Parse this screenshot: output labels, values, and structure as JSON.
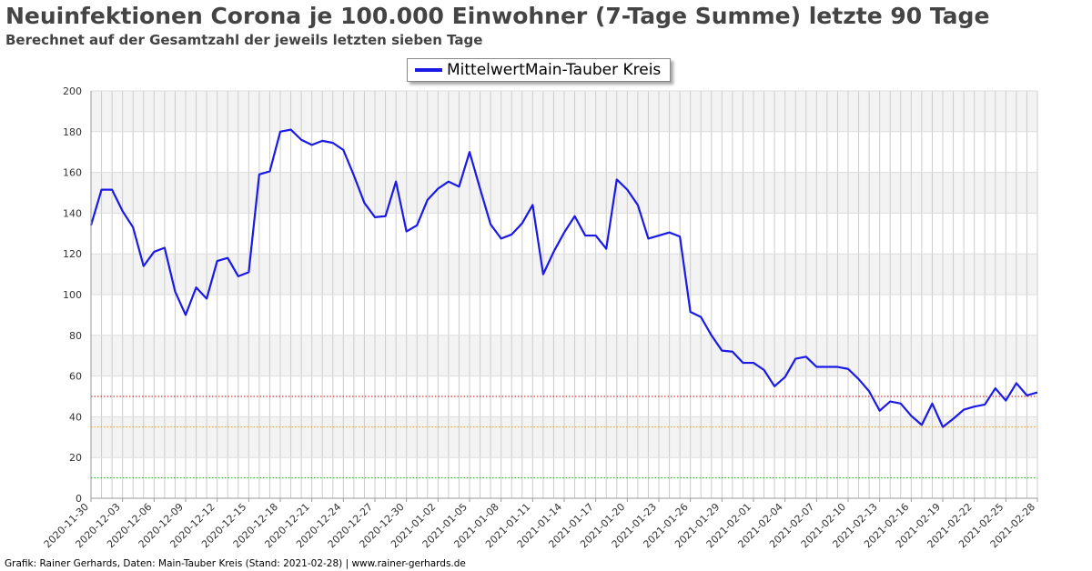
{
  "header": {
    "title": "Neuinfektionen Corona je 100.000 Einwohner (7-Tage Summe) letzte 90 Tage",
    "subtitle": "Berechnet auf der Gesamtzahl der jeweils letzten sieben Tage"
  },
  "footer": {
    "text": "Grafik: Rainer Gerhards, Daten: Main-Tauber Kreis (Stand: 2021-02-28) | www.rainer-gerhards.de"
  },
  "colors": {
    "series": "#1a1ae6",
    "line_50": "#cc0000",
    "line_35": "#ff9900",
    "line_10": "#00bb00",
    "band": "#f3f3f3",
    "grid": "#cccccc"
  },
  "chart_data": {
    "type": "line",
    "title": "Neuinfektionen Corona je 100.000 Einwohner (7-Tage Summe) letzte 90 Tage",
    "subtitle": "Berechnet auf der Gesamtzahl der jeweils letzten sieben Tage",
    "x_start": "2020-11-30",
    "x_end": "2021-02-28",
    "ylim": [
      0,
      200
    ],
    "yticks": [
      0,
      20,
      40,
      60,
      80,
      100,
      120,
      140,
      160,
      180,
      200
    ],
    "xtick_labels": [
      "2020-11-30",
      "2020-12-03",
      "2020-12-06",
      "2020-12-09",
      "2020-12-12",
      "2020-12-15",
      "2020-12-18",
      "2020-12-21",
      "2020-12-24",
      "2020-12-27",
      "2020-12-30",
      "2021-01-02",
      "2021-01-05",
      "2021-01-08",
      "2021-01-11",
      "2021-01-14",
      "2021-01-17",
      "2021-01-20",
      "2021-01-23",
      "2021-01-26",
      "2021-01-29",
      "2021-02-01",
      "2021-02-04",
      "2021-02-07",
      "2021-02-10",
      "2021-02-13",
      "2021-02-16",
      "2021-02-19",
      "2021-02-22",
      "2021-02-25",
      "2021-02-28"
    ],
    "grid": true,
    "legend_position": "top-center",
    "series": [
      {
        "name": "MittelwertMain-Tauber Kreis",
        "color": "#1a1ae6",
        "values": [
          134,
          151.5,
          151.5,
          141,
          133,
          114,
          121,
          123,
          101.5,
          90,
          103.5,
          98,
          116.5,
          118,
          109,
          111,
          159,
          160.5,
          180,
          181,
          176,
          173.5,
          175.5,
          174.5,
          171,
          158.5,
          145,
          138,
          138.5,
          155.5,
          131,
          134,
          146.5,
          152,
          155.5,
          153,
          170,
          152,
          134.5,
          127.5,
          129.5,
          135,
          144,
          110,
          121,
          130.5,
          138.5,
          129,
          129,
          122.5,
          156.5,
          151.5,
          144,
          127.5,
          129,
          130.5,
          128.5,
          91.5,
          89,
          80,
          72.5,
          72,
          66.5,
          66.5,
          63,
          55,
          59.5,
          68.5,
          69.5,
          64.5,
          64.5,
          64.5,
          63.5,
          58.5,
          52.5,
          43,
          47.5,
          46.5,
          40.5,
          36,
          46.5,
          35,
          39,
          43.5,
          45,
          46,
          54,
          48,
          56.5,
          50.5,
          52
        ]
      }
    ],
    "reference_lines": [
      {
        "value": 50,
        "color": "#cc0000"
      },
      {
        "value": 35,
        "color": "#ff9900"
      },
      {
        "value": 10,
        "color": "#00bb00"
      }
    ]
  }
}
